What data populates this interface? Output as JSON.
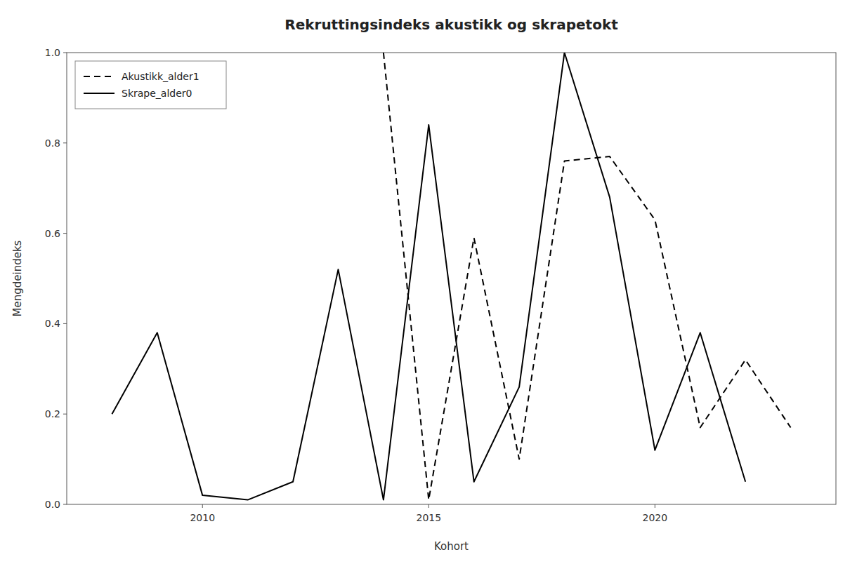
{
  "chart_data": {
    "type": "line",
    "title": "Rekruttingsindeks akustikk og skrapetokt",
    "x_label": "Kohort",
    "y_label": "Mengdeindeks",
    "series": [
      {
        "name": "Akustikk_alder1",
        "color": "#000000",
        "line_style": "dashed",
        "x": [
          2014,
          2015,
          2016,
          2017,
          2018,
          2019,
          2020,
          2021,
          2022,
          2023
        ],
        "values": [
          1.0,
          0.01,
          0.59,
          0.1,
          0.76,
          0.77,
          0.63,
          0.17,
          0.32,
          0.17
        ]
      },
      {
        "name": "Skrape_alder0",
        "color": "#000000",
        "line_style": "solid",
        "x": [
          2008,
          2009,
          2010,
          2011,
          2012,
          2013,
          2014,
          2015,
          2016,
          2017,
          2018,
          2019,
          2020,
          2021,
          2022
        ],
        "values": [
          0.2,
          0.38,
          0.02,
          0.01,
          0.05,
          0.52,
          0.01,
          0.84,
          0.05,
          0.26,
          1.0,
          0.68,
          0.12,
          0.38,
          0.05
        ]
      }
    ],
    "xlim": [
      2007.0,
      2024.0
    ],
    "xticks": [
      2010,
      2015,
      2020
    ],
    "ylim": [
      0.0,
      1.0
    ],
    "yticks": [
      {
        "value": 0.0,
        "label": "0.0"
      },
      {
        "value": 0.2,
        "label": "0.2"
      },
      {
        "value": 0.4,
        "label": "0.4"
      },
      {
        "value": 0.6,
        "label": "0.6"
      },
      {
        "value": 0.8,
        "label": "0.8"
      },
      {
        "value": 1.0,
        "label": "1.0"
      }
    ],
    "grid": false,
    "legend": "upper left"
  }
}
